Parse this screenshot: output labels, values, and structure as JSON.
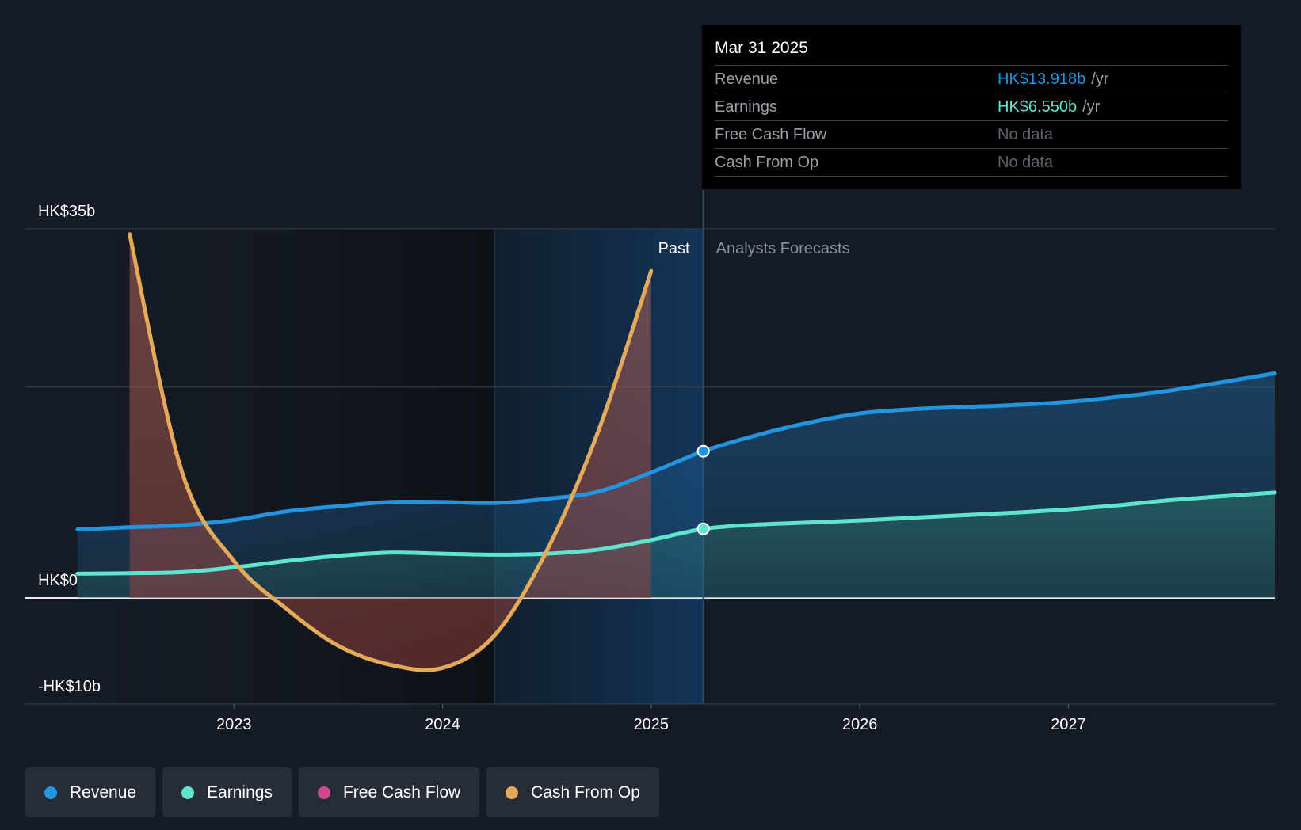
{
  "chart_data": {
    "type": "area",
    "y_axis": {
      "labels": [
        "HK$35b",
        "HK$0",
        "-HK$10b"
      ],
      "ylim": [
        -10,
        35
      ],
      "unit": "HK$b"
    },
    "x_axis": {
      "ticks": [
        "2023",
        "2024",
        "2025",
        "2026",
        "2027"
      ],
      "range": [
        2022.0,
        2027.99
      ]
    },
    "divider_x": 2025.25,
    "highlight_start_x": 2024.25,
    "regions": {
      "past_label": "Past",
      "forecast_label": "Analysts Forecasts"
    },
    "gridlines": [
      35,
      20,
      0,
      -10
    ],
    "series": [
      {
        "name": "Revenue",
        "color": "#2394df",
        "x": [
          2022.25,
          2022.5,
          2022.75,
          2023.0,
          2023.25,
          2023.5,
          2023.75,
          2024.0,
          2024.25,
          2024.5,
          2024.75,
          2025.0,
          2025.25,
          2025.5,
          2025.75,
          2026.0,
          2026.25,
          2026.5,
          2026.75,
          2027.0,
          2027.25,
          2027.5,
          2027.99
        ],
        "y": [
          6.5,
          6.7,
          6.9,
          7.4,
          8.2,
          8.7,
          9.1,
          9.1,
          9.0,
          9.4,
          10.1,
          11.9,
          13.918,
          15.4,
          16.6,
          17.5,
          17.9,
          18.1,
          18.3,
          18.6,
          19.1,
          19.7,
          21.3
        ]
      },
      {
        "name": "Earnings",
        "color": "#5ee4cf",
        "x": [
          2022.25,
          2022.5,
          2022.75,
          2023.0,
          2023.25,
          2023.5,
          2023.75,
          2024.0,
          2024.25,
          2024.5,
          2024.75,
          2025.0,
          2025.25,
          2025.5,
          2025.75,
          2026.0,
          2026.25,
          2026.5,
          2026.75,
          2027.0,
          2027.25,
          2027.5,
          2027.99
        ],
        "y": [
          2.3,
          2.35,
          2.45,
          2.9,
          3.5,
          4.0,
          4.3,
          4.2,
          4.1,
          4.2,
          4.6,
          5.5,
          6.55,
          6.95,
          7.15,
          7.35,
          7.6,
          7.85,
          8.1,
          8.4,
          8.8,
          9.3,
          10.0
        ]
      },
      {
        "name": "Free Cash Flow",
        "color": "#d0478d",
        "x": [],
        "y": []
      },
      {
        "name": "Cash From Op",
        "color": "#e5a95a",
        "x": [
          2022.5,
          2022.75,
          2023.0,
          2023.25,
          2023.5,
          2023.75,
          2024.0,
          2024.25,
          2024.5,
          2024.75,
          2025.0
        ],
        "y": [
          34.5,
          12.0,
          3.5,
          -1.0,
          -4.5,
          -6.3,
          -6.6,
          -3.5,
          4.5,
          16.0,
          31.0
        ]
      }
    ]
  },
  "tooltip": {
    "date": "Mar 31 2025",
    "rows": [
      {
        "label": "Revenue",
        "value": "HK$13.918b",
        "unit": "/yr",
        "color": "#2394df"
      },
      {
        "label": "Earnings",
        "value": "HK$6.550b",
        "unit": "/yr",
        "color": "#5ee4cf"
      },
      {
        "label": "Free Cash Flow",
        "value": "No data",
        "unit": "",
        "color": "#5f6570"
      },
      {
        "label": "Cash From Op",
        "value": "No data",
        "unit": "",
        "color": "#5f6570"
      }
    ]
  },
  "legend": [
    {
      "label": "Revenue",
      "color": "#2394df"
    },
    {
      "label": "Earnings",
      "color": "#5ee4cf"
    },
    {
      "label": "Free Cash Flow",
      "color": "#d0478d"
    },
    {
      "label": "Cash From Op",
      "color": "#e5a95a"
    }
  ]
}
